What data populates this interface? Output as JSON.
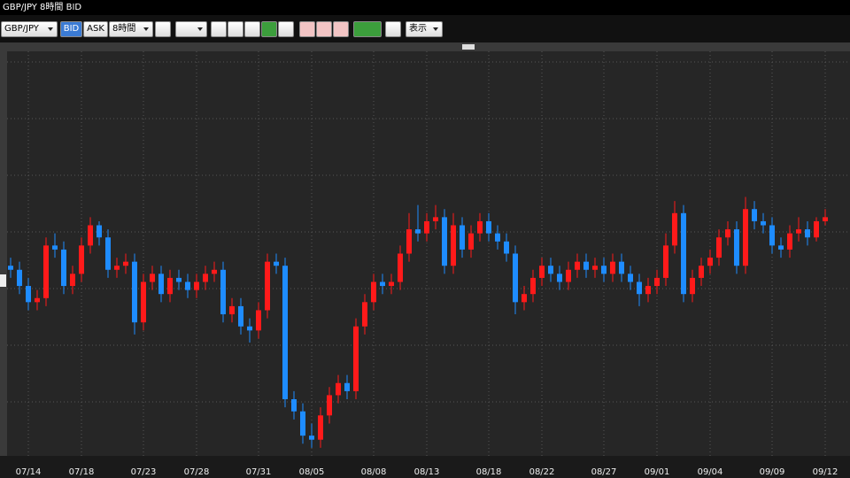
{
  "window": {
    "title": "GBP/JPY 8時間 BID"
  },
  "toolbar": {
    "pair": "GBP/JPY",
    "bid": "BID",
    "ask": "ASK",
    "interval": "8時間",
    "display": "表示"
  },
  "chart_data": {
    "type": "candlestick",
    "up_color": "#ff1a1a",
    "down_color": "#1e8cff",
    "ylim": [
      0,
      100
    ],
    "categories": [
      null,
      null,
      "07/14",
      null,
      null,
      null,
      null,
      null,
      "07/18",
      null,
      null,
      null,
      null,
      null,
      null,
      "07/23",
      null,
      null,
      null,
      null,
      null,
      "07/28",
      null,
      null,
      null,
      null,
      null,
      null,
      "07/31",
      null,
      null,
      null,
      null,
      null,
      "08/05",
      null,
      null,
      null,
      null,
      null,
      null,
      "08/08",
      null,
      null,
      null,
      null,
      null,
      "08/13",
      null,
      null,
      null,
      null,
      null,
      null,
      "08/18",
      null,
      null,
      null,
      null,
      null,
      "08/22",
      null,
      null,
      null,
      null,
      null,
      null,
      "08/27",
      null,
      null,
      null,
      null,
      null,
      "09/01",
      null,
      null,
      null,
      null,
      null,
      "09/04",
      null,
      null,
      null,
      null,
      null,
      null,
      "09/09",
      null,
      null,
      null,
      null,
      null,
      "09/12"
    ],
    "open": [
      47,
      46,
      42,
      38,
      39,
      52,
      51,
      42,
      45,
      52,
      57,
      54,
      46,
      47,
      48,
      33,
      43,
      45,
      40,
      44,
      43,
      41,
      43,
      45,
      46,
      35,
      37,
      32,
      31,
      36,
      48,
      47,
      14,
      11,
      5,
      4,
      10,
      15,
      18,
      16,
      32,
      38,
      43,
      42,
      43,
      50,
      56,
      55,
      58,
      59,
      47,
      57,
      51,
      55,
      58,
      55,
      53,
      50,
      38,
      40,
      44,
      47,
      45,
      43,
      46,
      48,
      46,
      47,
      45,
      48,
      45,
      43,
      40,
      42,
      44,
      52,
      60,
      40,
      44,
      47,
      49,
      54,
      56,
      47,
      61,
      58,
      57,
      52,
      51,
      55,
      56,
      54,
      58
    ],
    "high": [
      49,
      48,
      44,
      41,
      54,
      55,
      53,
      47,
      54,
      59,
      58,
      56,
      49,
      50,
      50,
      45,
      47,
      47,
      46,
      46,
      45,
      45,
      47,
      48,
      48,
      39,
      39,
      34,
      38,
      50,
      50,
      49,
      16,
      13,
      8,
      12,
      17,
      20,
      20,
      34,
      40,
      45,
      45,
      45,
      52,
      60,
      62,
      60,
      62,
      61,
      60,
      59,
      57,
      60,
      60,
      57,
      55,
      52,
      42,
      46,
      49,
      49,
      47,
      48,
      50,
      50,
      49,
      49,
      50,
      50,
      47,
      45,
      44,
      46,
      55,
      63,
      62,
      46,
      49,
      51,
      56,
      58,
      58,
      64,
      63,
      60,
      59,
      54,
      57,
      59,
      58,
      59,
      61
    ],
    "low": [
      44,
      40,
      36,
      36,
      37,
      49,
      40,
      40,
      43,
      50,
      52,
      44,
      44,
      45,
      30,
      31,
      41,
      38,
      38,
      41,
      39,
      39,
      41,
      43,
      33,
      33,
      30,
      28,
      29,
      34,
      45,
      12,
      9,
      3,
      2,
      2,
      8,
      13,
      14,
      14,
      30,
      36,
      40,
      40,
      41,
      48,
      53,
      53,
      56,
      45,
      45,
      49,
      49,
      53,
      53,
      51,
      48,
      35,
      36,
      38,
      42,
      43,
      41,
      41,
      44,
      44,
      44,
      43,
      43,
      43,
      41,
      37,
      38,
      40,
      42,
      50,
      38,
      38,
      42,
      45,
      47,
      52,
      45,
      45,
      56,
      55,
      50,
      49,
      49,
      53,
      52,
      53,
      57
    ],
    "close": [
      46,
      42,
      38,
      39,
      52,
      51,
      42,
      45,
      52,
      57,
      54,
      46,
      47,
      48,
      33,
      43,
      45,
      40,
      44,
      43,
      41,
      43,
      45,
      46,
      35,
      37,
      32,
      31,
      36,
      48,
      47,
      14,
      11,
      5,
      4,
      10,
      15,
      18,
      16,
      32,
      38,
      43,
      42,
      43,
      50,
      56,
      55,
      58,
      59,
      47,
      57,
      51,
      55,
      58,
      55,
      53,
      50,
      38,
      40,
      44,
      47,
      45,
      43,
      46,
      48,
      46,
      47,
      45,
      48,
      45,
      43,
      40,
      42,
      44,
      52,
      60,
      40,
      44,
      47,
      49,
      54,
      56,
      47,
      61,
      58,
      57,
      52,
      51,
      55,
      56,
      54,
      58,
      59
    ]
  }
}
